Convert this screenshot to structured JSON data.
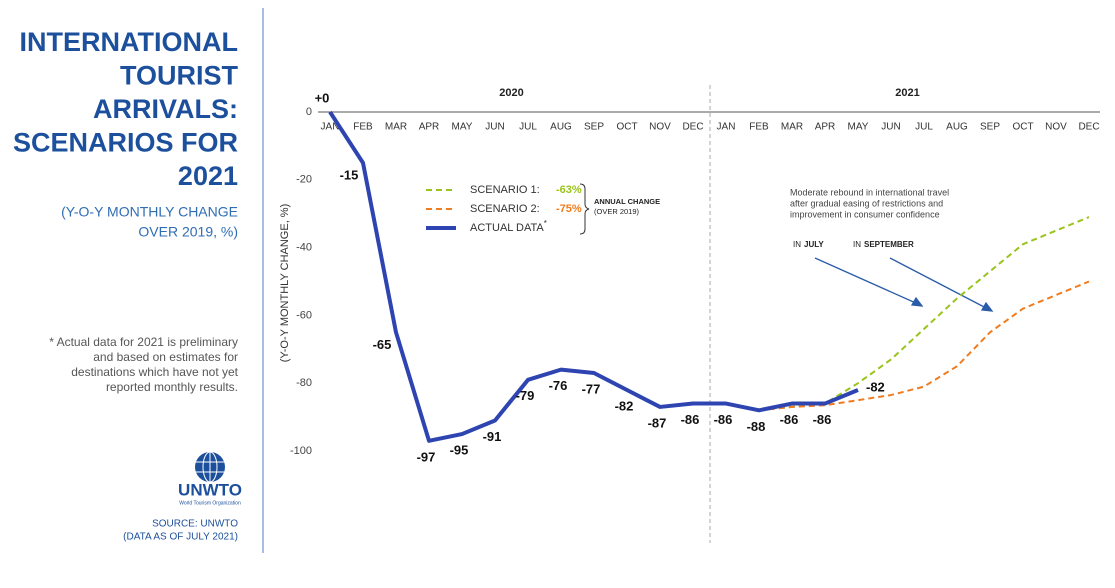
{
  "sidebar": {
    "title_lines": [
      "INTERNATIONAL",
      "TOURIST",
      "ARRIVALS:",
      "SCENARIOS FOR",
      "2021"
    ],
    "subtitle_lines": [
      "(Y-O-Y MONTHLY CHANGE",
      "OVER 2019, %)"
    ],
    "note_lines": [
      "* Actual data for 2021 is preliminary",
      "and based on estimates for",
      "destinations which have not yet",
      "reported monthly results."
    ],
    "logo_text": "UNWTO",
    "logo_subtext": "World Tourism Organization",
    "source_lines": [
      "SOURCE: UNWTO",
      "(DATA AS OF JULY 2021)"
    ]
  },
  "chart_data": {
    "type": "line",
    "y_label": "(Y-O-Y MONTHLY CHANGE, %)",
    "year_labels": [
      "2020",
      "2021"
    ],
    "categories": [
      "JAN",
      "FEB",
      "MAR",
      "APR",
      "MAY",
      "JUN",
      "JUL",
      "AUG",
      "SEP",
      "OCT",
      "NOV",
      "DEC",
      "JAN",
      "FEB",
      "MAR",
      "APR",
      "MAY",
      "JUN",
      "JUL",
      "AUG",
      "SEP",
      "OCT",
      "NOV",
      "DEC"
    ],
    "ylim": [
      -100,
      0
    ],
    "yticks": [
      0,
      -20,
      -40,
      -60,
      -80,
      -100
    ],
    "series": [
      {
        "name": "SCENARIO 1:",
        "annual_change": "-63%",
        "color": "#9ac31c",
        "dashed": true,
        "values": [
          null,
          null,
          null,
          null,
          null,
          null,
          null,
          null,
          null,
          null,
          null,
          null,
          null,
          -88,
          -87,
          -86,
          -80,
          -73,
          -64,
          -55,
          -47,
          -39,
          -35,
          -31
        ]
      },
      {
        "name": "SCENARIO 2:",
        "annual_change": "-75%",
        "color": "#f07c1f",
        "dashed": true,
        "values": [
          null,
          null,
          null,
          null,
          null,
          null,
          null,
          null,
          null,
          null,
          null,
          null,
          null,
          -88,
          -87,
          -86.5,
          -85,
          -83.5,
          -81,
          -75,
          -65,
          -58,
          -54,
          -50
        ]
      },
      {
        "name": "ACTUAL DATA",
        "name_mark": "*",
        "color": "#2e44b0",
        "dashed": false,
        "values": [
          0,
          -15,
          -65,
          -97,
          -95,
          -91,
          -79,
          -76,
          -77,
          -82,
          -87,
          -86,
          -86,
          -88,
          -86,
          -86,
          -82,
          null,
          null,
          null,
          null,
          null,
          null,
          null
        ],
        "value_labels": [
          "+0",
          "-15",
          "-65",
          "-97",
          "-95",
          "-91",
          "-79",
          "-76",
          "-77",
          "-82",
          "-87",
          "-86",
          "-86",
          "-88",
          "-86",
          "-86",
          "-82",
          null,
          null,
          null,
          null,
          null,
          null,
          null
        ]
      }
    ],
    "legend_note": [
      "ANNUAL CHANGE",
      "(OVER 2019)"
    ],
    "annotation_lines": [
      "Moderate rebound in international travel",
      "after gradual easing of restrictions and",
      "improvement in consumer confidence"
    ],
    "callouts": [
      {
        "lead": "IN",
        "emph": "JULY"
      },
      {
        "lead": "IN",
        "emph": "SEPTEMBER"
      }
    ]
  }
}
